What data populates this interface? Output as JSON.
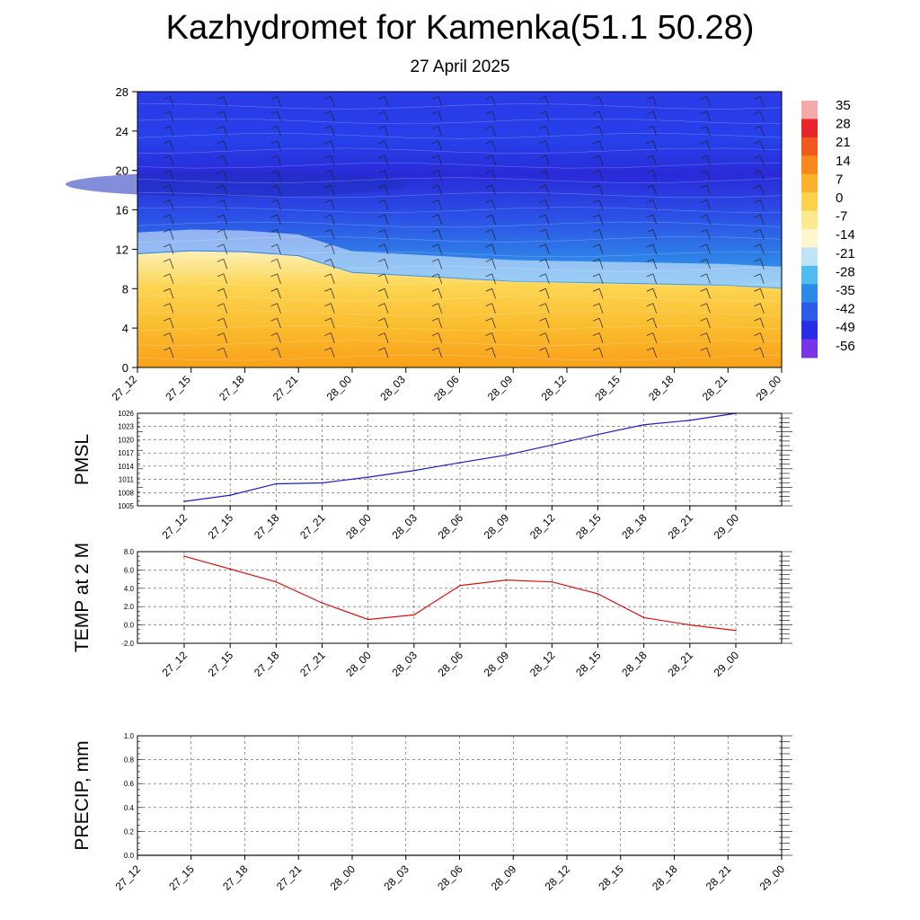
{
  "header": {
    "title": "Kazhydromet for Kamenka(51.1 50.28)",
    "date": "27 April 2025"
  },
  "time_labels": [
    "27_12",
    "27_15",
    "27_18",
    "27_21",
    "28_00",
    "28_03",
    "28_06",
    "28_09",
    "28_12",
    "28_15",
    "28_18",
    "28_21",
    "29_00"
  ],
  "chart_data": [
    {
      "type": "heatmap",
      "name": "temperature-cross-section",
      "x_labels": [
        "27_12",
        "27_15",
        "27_18",
        "27_21",
        "28_00",
        "28_03",
        "28_06",
        "28_09",
        "28_12",
        "28_15",
        "28_18",
        "28_21",
        "29_00"
      ],
      "y_ticks": [
        0,
        4,
        8,
        12,
        16,
        20,
        24,
        28
      ],
      "ylim": [
        0,
        28
      ],
      "freezing_level_by_step": [
        11.5,
        11.8,
        11.7,
        11.3,
        9.6,
        9.3,
        9.0,
        8.7,
        8.6,
        8.5,
        8.4,
        8.3,
        8.0
      ],
      "colorbar": {
        "labels": [
          "35",
          "28",
          "21",
          "14",
          "7",
          "0",
          "-7",
          "-14",
          "-21",
          "-28",
          "-35",
          "-42",
          "-49",
          "-56"
        ],
        "colors": [
          "#f4aaa8",
          "#e8262a",
          "#f05a1c",
          "#f7881b",
          "#fbb12a",
          "#fcd34b",
          "#fdea8f",
          "#fdf6cf",
          "#bfe3f7",
          "#4fbcf0",
          "#2a8be6",
          "#2b5be8",
          "#2a2de6",
          "#7a34e8"
        ]
      },
      "grid": true,
      "wind_barbs": true
    },
    {
      "type": "line",
      "name": "PMSL",
      "ylabel": "PMSL",
      "x": [
        "27_12",
        "27_15",
        "27_18",
        "27_21",
        "28_00",
        "28_03",
        "28_06",
        "28_09",
        "28_12",
        "28_15",
        "28_18",
        "28_21",
        "29_00"
      ],
      "values": [
        1006.0,
        1007.4,
        1010.0,
        1010.2,
        1011.5,
        1013.0,
        1014.8,
        1016.5,
        1018.8,
        1021.2,
        1023.4,
        1024.4,
        1026.0
      ],
      "yticks": [
        "1005",
        "1008",
        "1011",
        "1014",
        "1017",
        "1020",
        "1023",
        "1026"
      ],
      "ylim": [
        1005,
        1026
      ],
      "color": "#1b1bd6",
      "grid": true
    },
    {
      "type": "line",
      "name": "TEMP at 2 M",
      "ylabel": "TEMP at 2 M",
      "x": [
        "27_12",
        "27_15",
        "27_18",
        "27_21",
        "28_00",
        "28_03",
        "28_06",
        "28_09",
        "28_12",
        "28_15",
        "28_18",
        "28_21",
        "29_00"
      ],
      "values": [
        7.5,
        6.1,
        4.7,
        2.4,
        0.6,
        1.1,
        4.3,
        4.9,
        4.7,
        3.4,
        0.8,
        0.0,
        -0.6
      ],
      "yticks": [
        "-2.0",
        "0.0",
        "2.0",
        "4.0",
        "6.0",
        "8.0"
      ],
      "ylim": [
        -2,
        8
      ],
      "color": "#e01010",
      "grid": true
    },
    {
      "type": "line",
      "name": "PRECIP, mm",
      "ylabel": "PRECIP, mm",
      "x": [
        "27_12",
        "27_15",
        "27_18",
        "27_21",
        "28_00",
        "28_03",
        "28_06",
        "28_09",
        "28_12",
        "28_15",
        "28_18",
        "28_21",
        "29_00"
      ],
      "values": [
        0,
        0,
        0,
        0,
        0,
        0,
        0,
        0,
        0,
        0,
        0,
        0,
        0
      ],
      "yticks": [
        "0.0",
        "0.2",
        "0.4",
        "0.6",
        "0.8",
        "1.0"
      ],
      "ylim": [
        0,
        1
      ],
      "color": "#1e7a1e",
      "grid": true
    }
  ]
}
